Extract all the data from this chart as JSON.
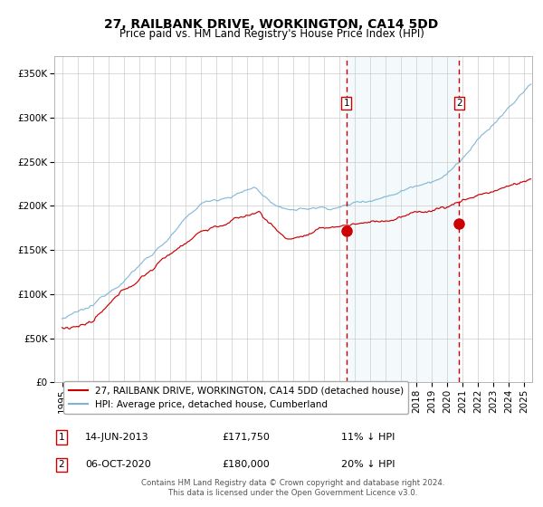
{
  "title": "27, RAILBANK DRIVE, WORKINGTON, CA14 5DD",
  "subtitle": "Price paid vs. HM Land Registry's House Price Index (HPI)",
  "xlim_start": 1994.5,
  "xlim_end": 2025.5,
  "ylim": [
    0,
    370000
  ],
  "yticks": [
    0,
    50000,
    100000,
    150000,
    200000,
    250000,
    300000,
    350000
  ],
  "ytick_labels": [
    "£0",
    "£50K",
    "£100K",
    "£150K",
    "£200K",
    "£250K",
    "£300K",
    "£350K"
  ],
  "xticks": [
    1995,
    1996,
    1997,
    1998,
    1999,
    2000,
    2001,
    2002,
    2003,
    2004,
    2005,
    2006,
    2007,
    2008,
    2009,
    2010,
    2011,
    2012,
    2013,
    2014,
    2015,
    2016,
    2017,
    2018,
    2019,
    2020,
    2021,
    2022,
    2023,
    2024,
    2025
  ],
  "sale1_x": 2013.45,
  "sale1_y": 171750,
  "sale1_label": "1",
  "sale1_date": "14-JUN-2013",
  "sale1_price": "£171,750",
  "sale1_hpi": "11% ↓ HPI",
  "sale2_x": 2020.77,
  "sale2_y": 180000,
  "sale2_label": "2",
  "sale2_date": "06-OCT-2020",
  "sale2_price": "£180,000",
  "sale2_hpi": "20% ↓ HPI",
  "hpi_color": "#7ab3d4",
  "price_color": "#cc0000",
  "dashed_color": "#cc0000",
  "shade_color": "#d6e8f5",
  "bg_color": "#ffffff",
  "grid_color": "#cccccc",
  "legend_label_price": "27, RAILBANK DRIVE, WORKINGTON, CA14 5DD (detached house)",
  "legend_label_hpi": "HPI: Average price, detached house, Cumberland",
  "footer": "Contains HM Land Registry data © Crown copyright and database right 2024.\nThis data is licensed under the Open Government Licence v3.0.",
  "title_fontsize": 10,
  "subtitle_fontsize": 8.5,
  "tick_fontsize": 7.5,
  "legend_fontsize": 7.5
}
